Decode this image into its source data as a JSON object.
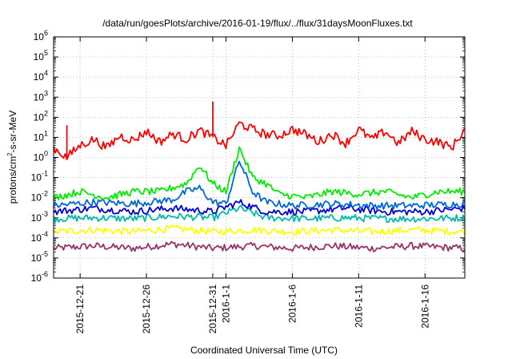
{
  "chart_data": {
    "type": "line",
    "title": "/data/run/goesPlots/archive/2016-01-19/flux/../flux/31daysMoonFluxes.txt",
    "xlabel": "Coordinated Universal Time (UTC)",
    "ylabel_parts": [
      "protons/cm",
      "2",
      "-s-sr-MeV"
    ],
    "y_scale": "log",
    "ylim": [
      1e-06,
      1000000.0
    ],
    "yticks": [
      {
        "base": "10",
        "exp": "-6",
        "value": 1e-06
      },
      {
        "base": "10",
        "exp": "-5",
        "value": 1e-05
      },
      {
        "base": "10",
        "exp": "-4",
        "value": 0.0001
      },
      {
        "base": "10",
        "exp": "-3",
        "value": 0.001
      },
      {
        "base": "10",
        "exp": "-2",
        "value": 0.01
      },
      {
        "base": "10",
        "exp": "-1",
        "value": 0.1
      },
      {
        "base": "10",
        "exp": "0",
        "value": 1
      },
      {
        "base": "10",
        "exp": "1",
        "value": 10
      },
      {
        "base": "10",
        "exp": "2",
        "value": 100
      },
      {
        "base": "10",
        "exp": "3",
        "value": 1000
      },
      {
        "base": "10",
        "exp": "4",
        "value": 10000
      },
      {
        "base": "10",
        "exp": "5",
        "value": 100000
      },
      {
        "base": "10",
        "exp": "6",
        "value": 1000000
      }
    ],
    "xlim": [
      "2015-12-19",
      "2016-01-19"
    ],
    "xticks": [
      {
        "label": "2015-12-21",
        "date": "2015-12-21"
      },
      {
        "label": "2015-12-26",
        "date": "2015-12-26"
      },
      {
        "label": "2015-12-31",
        "date": "2015-12-31"
      },
      {
        "label": "2016-1-1",
        "date": "2016-01-01"
      },
      {
        "label": "2016-1-6",
        "date": "2016-01-06"
      },
      {
        "label": "2016-1-11",
        "date": "2016-01-11"
      },
      {
        "label": "2016-1-16",
        "date": "2016-01-16"
      }
    ],
    "grid": true,
    "legend": "none",
    "series": [
      {
        "color": "#ff0000",
        "x": [
          "2015-12-19",
          "2015-12-20",
          "2015-12-21",
          "2015-12-22",
          "2015-12-23",
          "2015-12-24",
          "2015-12-25",
          "2015-12-26",
          "2015-12-27",
          "2015-12-28",
          "2015-12-29",
          "2015-12-30",
          "2015-12-31",
          "2016-01-01",
          "2016-01-02",
          "2016-01-03",
          "2016-01-04",
          "2016-01-05",
          "2016-01-06",
          "2016-01-07",
          "2016-01-08",
          "2016-01-09",
          "2016-01-10",
          "2016-01-11",
          "2016-01-12",
          "2016-01-13",
          "2016-01-14",
          "2016-01-15",
          "2016-01-16",
          "2016-01-17",
          "2016-01-18",
          "2016-01-19"
        ],
        "y": [
          3,
          1,
          4,
          8,
          3,
          12,
          7,
          20,
          6,
          15,
          8,
          22,
          10,
          4,
          50,
          25,
          14,
          12,
          25,
          14,
          6,
          15,
          5,
          25,
          8,
          20,
          5,
          20,
          8,
          6,
          3,
          25
        ],
        "peaks": [
          {
            "x": "2015-12-31",
            "y": 600
          },
          {
            "x": "2015-12-20",
            "y": 40
          }
        ]
      },
      {
        "color": "#00ee00",
        "x": [
          "2015-12-19",
          "2015-12-21",
          "2015-12-23",
          "2015-12-25",
          "2015-12-27",
          "2015-12-29",
          "2015-12-30",
          "2015-12-31",
          "2016-01-01",
          "2016-01-02",
          "2016-01-03",
          "2016-01-04",
          "2016-01-05",
          "2016-01-07",
          "2016-01-09",
          "2016-01-11",
          "2016-01-13",
          "2016-01-15",
          "2016-01-17",
          "2016-01-19"
        ],
        "y": [
          0.01,
          0.02,
          0.01,
          0.02,
          0.02,
          0.05,
          0.4,
          0.05,
          0.02,
          3,
          0.1,
          0.05,
          0.015,
          0.01,
          0.02,
          0.015,
          0.02,
          0.01,
          0.02,
          0.02
        ]
      },
      {
        "color": "#0066dd",
        "x": [
          "2015-12-19",
          "2015-12-22",
          "2015-12-25",
          "2015-12-28",
          "2015-12-29",
          "2015-12-30",
          "2015-12-31",
          "2016-01-01",
          "2016-01-02",
          "2016-01-03",
          "2016-01-04",
          "2016-01-06",
          "2016-01-09",
          "2016-01-12",
          "2016-01-15",
          "2016-01-19"
        ],
        "y": [
          0.004,
          0.006,
          0.005,
          0.008,
          0.02,
          0.03,
          0.006,
          0.005,
          0.7,
          0.02,
          0.006,
          0.004,
          0.005,
          0.004,
          0.004,
          0.005
        ]
      },
      {
        "color": "#0000dd",
        "x": [
          "2015-12-19",
          "2015-12-22",
          "2015-12-25",
          "2015-12-28",
          "2015-12-31",
          "2016-01-02",
          "2016-01-04",
          "2016-01-07",
          "2016-01-10",
          "2016-01-13",
          "2016-01-16",
          "2016-01-19"
        ],
        "y": [
          0.002,
          0.003,
          0.002,
          0.003,
          0.002,
          0.006,
          0.002,
          0.002,
          0.003,
          0.002,
          0.002,
          0.003
        ]
      },
      {
        "color": "#00bbaa",
        "x": [
          "2015-12-19",
          "2015-12-22",
          "2015-12-25",
          "2015-12-28",
          "2015-12-31",
          "2016-01-02",
          "2016-01-04",
          "2016-01-07",
          "2016-01-10",
          "2016-01-13",
          "2016-01-16",
          "2016-01-19"
        ],
        "y": [
          0.0009,
          0.001,
          0.0009,
          0.0012,
          0.001,
          0.003,
          0.001,
          0.0009,
          0.001,
          0.0009,
          0.0009,
          0.001
        ]
      },
      {
        "color": "#ffff00",
        "x": [
          "2015-12-19",
          "2015-12-22",
          "2015-12-25",
          "2015-12-28",
          "2015-12-31",
          "2016-01-03",
          "2016-01-06",
          "2016-01-09",
          "2016-01-12",
          "2016-01-15",
          "2016-01-19"
        ],
        "y": [
          0.0002,
          0.00025,
          0.0002,
          0.0003,
          0.0002,
          0.00025,
          0.0002,
          0.00025,
          0.0002,
          0.00025,
          0.0002
        ]
      },
      {
        "color": "#993366",
        "x": [
          "2015-12-19",
          "2015-12-22",
          "2015-12-25",
          "2015-12-28",
          "2015-12-31",
          "2016-01-03",
          "2016-01-06",
          "2016-01-09",
          "2016-01-12",
          "2016-01-15",
          "2016-01-19"
        ],
        "y": [
          3e-05,
          4e-05,
          3e-05,
          5e-05,
          3e-05,
          4e-05,
          3e-05,
          4e-05,
          3e-05,
          4e-05,
          3e-05
        ]
      }
    ]
  }
}
